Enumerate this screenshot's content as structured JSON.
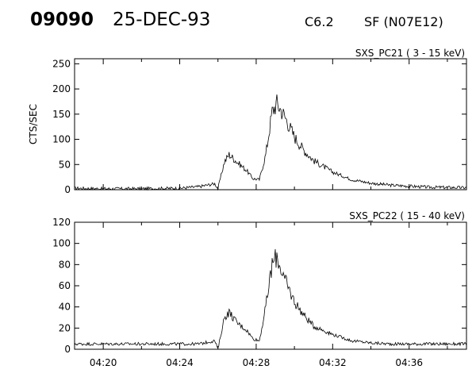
{
  "header": {
    "event_id": "09090",
    "date": "25-DEC-93",
    "goes_class": "C6.2",
    "flare_location": "SF (N07E12)"
  },
  "chart_data": [
    {
      "type": "line",
      "title": "SXS_PC21  (  3 - 15 keV)",
      "ylabel": "CTS/SEC",
      "xlabel": "",
      "ylim": [
        0,
        260
      ],
      "yticks": [
        0,
        50,
        100,
        150,
        200,
        250
      ],
      "xlim": [
        "04:18:30",
        "04:39:00"
      ],
      "grid": false,
      "series": [
        {
          "x": [
            "04:18:30",
            "04:20",
            "04:22",
            "04:24",
            "04:25",
            "04:25:50",
            "04:26:00",
            "04:26:20",
            "04:26:35",
            "04:27:00",
            "04:27:30",
            "04:27:50",
            "04:28:10",
            "04:28:30",
            "04:28:50",
            "04:29:05",
            "04:29:30",
            "04:30:00",
            "04:30:30",
            "04:31:00",
            "04:32:00",
            "04:33:00",
            "04:34:00",
            "04:35:00",
            "04:36:00",
            "04:37:00",
            "04:39:00"
          ],
          "y": [
            3,
            2,
            2,
            3,
            6,
            12,
            2,
            55,
            70,
            55,
            38,
            22,
            20,
            70,
            155,
            172,
            145,
            105,
            78,
            58,
            35,
            20,
            13,
            9,
            7,
            5,
            4
          ]
        }
      ]
    },
    {
      "type": "line",
      "title": "SXS_PC22  ( 15 - 40 keV)",
      "ylabel": "",
      "xlabel": "",
      "ylim": [
        0,
        120
      ],
      "yticks": [
        0,
        20,
        40,
        60,
        80,
        100,
        120
      ],
      "xlim": [
        "04:18:30",
        "04:39:00"
      ],
      "xticks": [
        "04:20",
        "04:24",
        "04:28",
        "04:32",
        "04:36"
      ],
      "grid": false,
      "series": [
        {
          "x": [
            "04:18:30",
            "04:20",
            "04:22",
            "04:24",
            "04:25",
            "04:25:50",
            "04:26:00",
            "04:26:20",
            "04:26:35",
            "04:27:00",
            "04:27:30",
            "04:27:50",
            "04:28:10",
            "04:28:30",
            "04:28:50",
            "04:29:05",
            "04:29:30",
            "04:30:00",
            "04:30:30",
            "04:31:00",
            "04:32:00",
            "04:33:00",
            "04:34:00",
            "04:35:00",
            "04:36:00",
            "04:37:00",
            "04:39:00"
          ],
          "y": [
            5,
            5,
            5,
            5,
            5,
            8,
            0,
            30,
            35,
            25,
            18,
            10,
            8,
            40,
            80,
            88,
            65,
            45,
            32,
            22,
            14,
            8,
            6,
            5,
            5,
            5,
            5
          ]
        }
      ]
    }
  ]
}
